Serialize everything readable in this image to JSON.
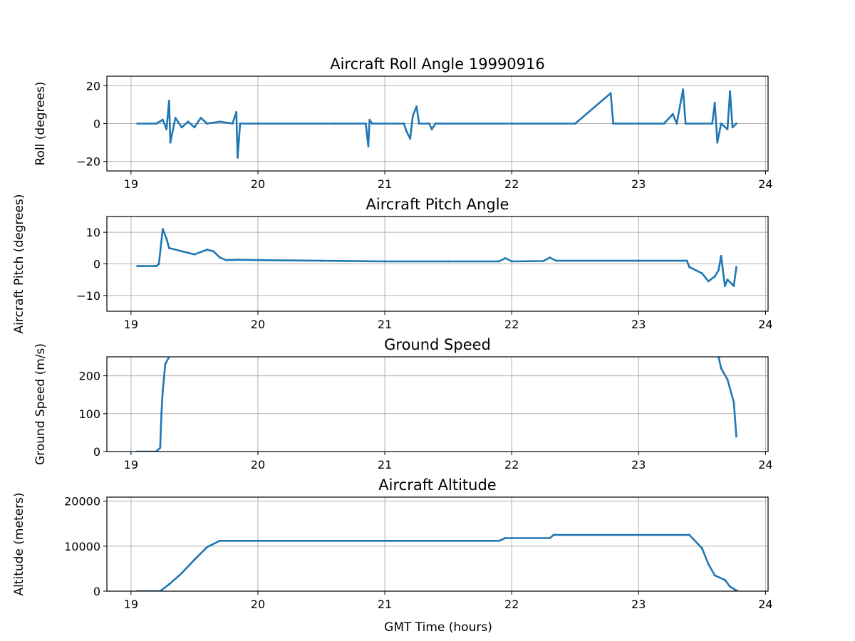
{
  "chart_data": [
    {
      "type": "scatter",
      "title": "Aircraft Roll Angle 19990916",
      "xlabel": "",
      "ylabel": "Roll (degrees)",
      "xlim": [
        18.81,
        24.02
      ],
      "ylim": [
        -25,
        25
      ],
      "xticks": [
        19,
        20,
        21,
        22,
        23,
        24
      ],
      "yticks": [
        -20,
        0,
        20
      ],
      "grid": true,
      "color": "#1f77b4",
      "x": [
        19.05,
        19.2,
        19.25,
        19.28,
        19.3,
        19.31,
        19.35,
        19.4,
        19.45,
        19.5,
        19.55,
        19.6,
        19.7,
        19.8,
        19.83,
        19.84,
        19.86,
        20.0,
        20.3,
        20.6,
        20.85,
        20.87,
        20.88,
        20.9,
        21.15,
        21.17,
        21.2,
        21.22,
        21.25,
        21.27,
        21.35,
        21.37,
        21.4,
        22.0,
        22.5,
        22.78,
        22.8,
        23.0,
        23.2,
        23.27,
        23.3,
        23.35,
        23.37,
        23.58,
        23.6,
        23.62,
        23.65,
        23.7,
        23.72,
        23.74,
        23.77
      ],
      "y": [
        0,
        0,
        2,
        -3,
        12,
        -10,
        3,
        -2,
        1,
        -2,
        3,
        0,
        1,
        0,
        6,
        -18,
        0,
        0,
        0,
        0,
        0,
        -12,
        2,
        0,
        0,
        -4,
        -8,
        4,
        9,
        0,
        0,
        -3,
        0,
        0,
        0,
        16,
        0,
        0,
        0,
        5,
        0,
        18,
        0,
        0,
        11,
        -10,
        0,
        -3,
        17,
        -2,
        0
      ]
    },
    {
      "type": "scatter",
      "title": "Aircraft Pitch Angle",
      "xlabel": "",
      "ylabel": "Aircraft Pitch (degrees)",
      "xlim": [
        18.81,
        24.02
      ],
      "ylim": [
        -15,
        15
      ],
      "xticks": [
        19,
        20,
        21,
        22,
        23,
        24
      ],
      "yticks": [
        -10,
        0,
        10
      ],
      "grid": true,
      "color": "#1f77b4",
      "x": [
        19.05,
        19.2,
        19.22,
        19.25,
        19.28,
        19.3,
        19.4,
        19.5,
        19.6,
        19.65,
        19.7,
        19.75,
        19.85,
        20.0,
        20.5,
        21.0,
        21.5,
        21.9,
        21.95,
        22.0,
        22.25,
        22.3,
        22.35,
        23.0,
        23.38,
        23.4,
        23.5,
        23.55,
        23.6,
        23.63,
        23.65,
        23.68,
        23.7,
        23.75,
        23.77
      ],
      "y": [
        -0.7,
        -0.7,
        0,
        11,
        8,
        5,
        4,
        3,
        4.5,
        4,
        2,
        1.2,
        1.3,
        1.2,
        1.0,
        0.8,
        0.8,
        0.8,
        1.8,
        0.8,
        0.9,
        2,
        1.0,
        1.0,
        1.0,
        -1,
        -3,
        -5.5,
        -4,
        -2,
        2.5,
        -7,
        -5,
        -7,
        -1
      ]
    },
    {
      "type": "scatter",
      "title": "Ground Speed",
      "xlabel": "",
      "ylabel": "Ground Speed (m/s)",
      "xlim": [
        18.81,
        24.02
      ],
      "ylim": [
        0,
        250
      ],
      "xticks": [
        19,
        20,
        21,
        22,
        23,
        24
      ],
      "yticks": [
        0,
        100,
        200
      ],
      "grid": true,
      "color": "#1f77b4",
      "segments": [
        {
          "x": [
            19.05,
            19.2,
            19.23,
            19.24,
            19.25,
            19.27,
            19.3
          ],
          "y": [
            0,
            0,
            10,
            100,
            160,
            230,
            250
          ]
        },
        {
          "x": [
            23.63,
            23.65,
            23.7,
            23.75,
            23.77
          ],
          "y": [
            250,
            220,
            190,
            130,
            40
          ]
        }
      ]
    },
    {
      "type": "scatter",
      "title": "Aircraft Altitude",
      "xlabel": "GMT Time (hours)",
      "ylabel": "Altitude (meters)",
      "xlim": [
        18.81,
        24.02
      ],
      "ylim": [
        0,
        20900
      ],
      "xticks": [
        19,
        20,
        21,
        22,
        23,
        24
      ],
      "yticks": [
        0,
        10000,
        20000
      ],
      "grid": true,
      "color": "#1f77b4",
      "x": [
        19.05,
        19.23,
        19.3,
        19.4,
        19.5,
        19.6,
        19.7,
        21.9,
        21.95,
        22.3,
        22.33,
        23.4,
        23.5,
        23.55,
        23.6,
        23.68,
        23.72,
        23.78
      ],
      "y": [
        0,
        0,
        1500,
        4000,
        7000,
        9800,
        11200,
        11200,
        11800,
        11800,
        12500,
        12500,
        9500,
        6000,
        3500,
        2500,
        1000,
        0
      ]
    }
  ]
}
